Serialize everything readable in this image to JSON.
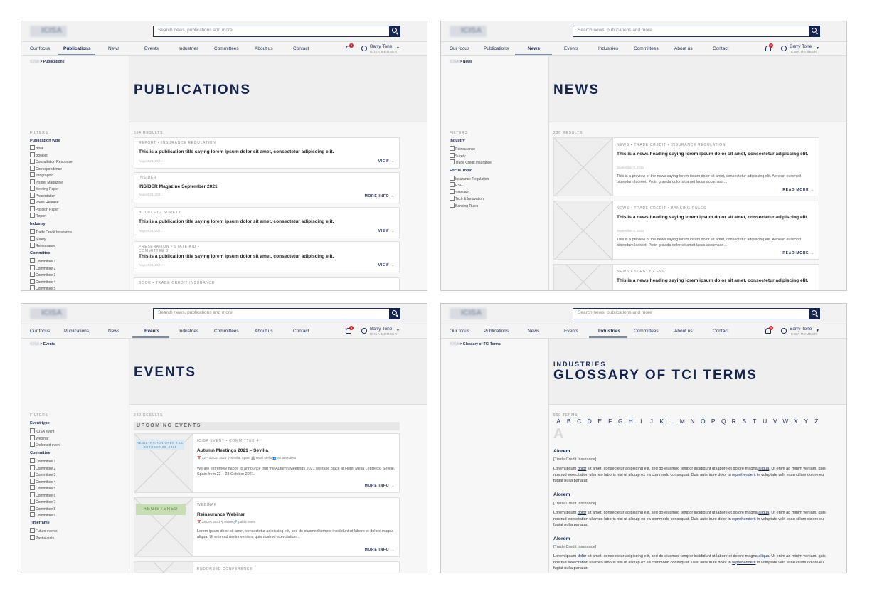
{
  "header": {
    "logo": "ICISA",
    "search_placeholder": "Search news, publications and more",
    "nav": [
      "Our focus",
      "Publications",
      "News",
      "Events",
      "Industries",
      "Committees",
      "About us",
      "Contact"
    ],
    "notification_count": "4",
    "user_name": "Barry Tone",
    "user_role": "ICISA MEMBER",
    "breadcrumb_home": "ICISA"
  },
  "publications": {
    "breadcrumb": "Publications",
    "title": "PUBLICATIONS",
    "filters_label": "FILTERS",
    "results": "564 RESULTS",
    "filter_groups": [
      {
        "name": "Publication type",
        "options": [
          "Book",
          "Booklet",
          "Consultation Response",
          "Correspondence",
          "Infographic",
          "Insider Magazine",
          "Meeting Paper",
          "Presentation",
          "Press Release",
          "Position Paper",
          "Report"
        ]
      },
      {
        "name": "Industry",
        "options": [
          "Trade Credit Insurance",
          "Surety",
          "Reinsurance"
        ]
      },
      {
        "name": "Committee",
        "options": [
          "Committee 1",
          "Committee 2",
          "Committee 3",
          "Committee 4",
          "Committee 5"
        ]
      }
    ],
    "items": [
      {
        "tag": "REPORT • INSURANCE REGULATION",
        "title": "This is a publication title saying lorem ipsum dolor sit amet, consectetur adipiscing elit.",
        "date": "August 26, 2021",
        "action": "VIEW →"
      },
      {
        "tag": "INSIDER",
        "title": "INSIDER Magazine September 2021",
        "date": "August 26, 2021",
        "action": "MORE INFO →"
      },
      {
        "tag": "BOOKLET •  SURETY",
        "title": "This is a publication title saying lorem ipsum dolor sit amet, consectetur adipiscing elit.",
        "date": "August 26, 2021",
        "action": "VIEW →"
      },
      {
        "tag": "PRESENATION • STATE AID •",
        "tag2": "COMMITTEE 3",
        "title": "This is a publication title saying lorem ipsum dolor sit amet, consectetur adipiscing elit.",
        "date": "August 26, 2021",
        "action": "VIEW →"
      },
      {
        "tag": "BOOK • TRADE CREDIT INSURANCE",
        "title": "",
        "date": "",
        "action": ""
      }
    ]
  },
  "news": {
    "breadcrumb": "News",
    "title": "NEWS",
    "filters_label": "FILTERS",
    "results": "230 RESULTS",
    "filter_groups": [
      {
        "name": "Industry",
        "options": [
          "Reinsurance",
          "Surety",
          "Trade Credit Insurance"
        ]
      },
      {
        "name": "Focus Topic",
        "options": [
          "Insurance Regulation",
          "ESG",
          "State Aid",
          "Tech & Innovation",
          "Banking Rules"
        ]
      }
    ],
    "items": [
      {
        "tag": "NEWS • TRADE CREDIT • INSURANCE REGULATION",
        "title": "This is a news heading saying lorem ipsum dolor sit amet, consectetur adipiscing elit.",
        "date": "September 9, 2021",
        "preview": "This is a preview of the news saying lorem ipsum dolor sit amet, consectetur adipiscing elit. Aenean euismod bibendum laoreet. Proin gravida dolor sit amet lacus accumsan…",
        "action": "READ MORE →"
      },
      {
        "tag": "NEWS • TRADE CREDIT  • BANKING RULES",
        "title": "This is a news heading saying lorem ipsum dolor sit amet, consectetur adipiscing elit.",
        "date": "September 9, 2021",
        "preview": "This is a preview of the news saying lorem ipsum dolor sit amet, consectetur adipiscing elit. Aenean euismod bibendum laoreet. Proin gravida dolor sit amet lacus accumsan…",
        "action": "READ MORE →"
      },
      {
        "tag": "NEWS • SURETY • ESG",
        "title": "This is a news heading saying lorem ipsum dolor sit amet, consectetur adipiscing elit."
      }
    ]
  },
  "events": {
    "breadcrumb": "Events",
    "title": "EVENTS",
    "filters_label": "FILTERS",
    "results": "230 RESULTS",
    "upcoming": "UPCOMING EVENTS",
    "filter_groups": [
      {
        "name": "Event type",
        "options": [
          "ICISA event",
          "Webinar",
          "Endorsed event"
        ]
      },
      {
        "name": "Committee",
        "options": [
          "Committee 1",
          "Committee 2",
          "Committee 3",
          "Committee 4",
          "Committee 5",
          "Committee 6",
          "Committee 7",
          "Committee 8",
          "Committee 9"
        ]
      },
      {
        "name": "Timeframe",
        "options": [
          "Future events",
          "Past events"
        ]
      }
    ],
    "items": [
      {
        "ribbon": "REGISTRATION OPEN TILL OCTOBER 20, 2021",
        "tag": "ICISA EVENT • COMMITTEE 4",
        "title": "Autumn Meetings 2021 – Sevilla",
        "meta": "📅 22 – 23 Oct 2021   ⚲ Sevilla, Spain   🏛 Hotel Melia   👥 80 attendees",
        "preview": "We are extremely happy to announce that the Autumn Meetings 2021 will take place at Hotel Melia Lebreros, Seville, Spain from 22 – 23 October 2021.",
        "action": "MORE INFO →"
      },
      {
        "ribbon": "REGISTERED",
        "tag": "WEBINAR",
        "title": "Reinsurance Webinar",
        "meta": "📅 28 Dec 2021   ⚲ online   🔗 public event",
        "preview": "Lorem ipsum dolor sit amet, consectetur adipiscing elit, sed do eiusmod tempor incididunt ut labore et dolore magna aliqua. Ut enim ad minim veniam, quis nostrud exercitation…",
        "action": "MORE INFO →"
      },
      {
        "tag": "ENDORSED CONFERENCE"
      }
    ]
  },
  "glossary": {
    "breadcrumb": "Glossary of TCI Terms",
    "subtitle": "INDUSTRIES",
    "title": "GLOSSARY OF TCI TERMS",
    "results": "500 TERMS",
    "letters": [
      "A",
      "B",
      "C",
      "D",
      "E",
      "F",
      "G",
      "H",
      "I",
      "J",
      "K",
      "L",
      "M",
      "N",
      "O",
      "P",
      "Q",
      "R",
      "S",
      "T",
      "U",
      "V",
      "W",
      "X",
      "Y",
      "Z"
    ],
    "section_letter": "A",
    "terms": [
      {
        "term": "Alorem",
        "category": "[Trade Credit Insurance]"
      },
      {
        "term": "Alorem",
        "category": "[Trade Credit Insurance]"
      },
      {
        "term": "Alorem",
        "category": "[Trade Credit Insurance]"
      }
    ],
    "text_a": "Lorem ipsum ",
    "text_link1": "dolor",
    "text_b": " sit amet, consectetur adipiscing elit, sed do eiusmod tempor incididunt ut labore et dolore magna ",
    "text_link2": "aliqua",
    "text_c": ". Ut enim ad minim veniam, quis nostrud exercitation ullamco laboris nisi ut aliquip ex ea commodo consequat. Duis aute irure dolor in ",
    "text_link3": "reprehenderit",
    "text_d": " in voluptate velit esse cillum dolore eu fugiat nulla pariatur."
  }
}
